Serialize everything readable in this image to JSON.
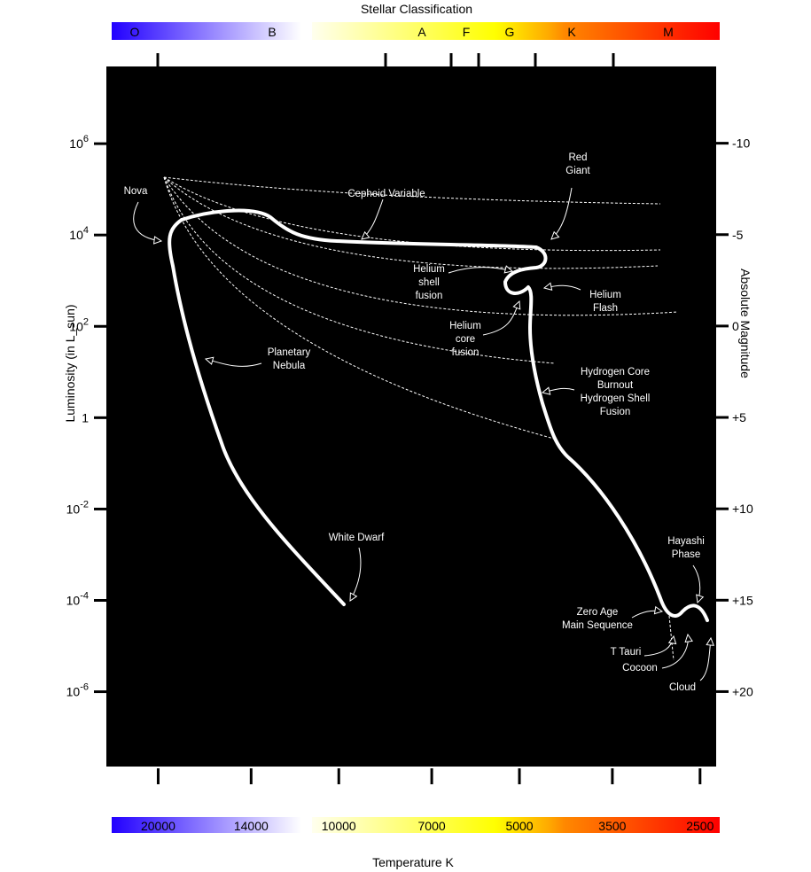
{
  "chart_data": {
    "type": "hr-diagram",
    "title": "Stellar Classification",
    "xlabel": "Temperature K",
    "ylabel": "Luminosity (in L_sun)",
    "y2label": "Absolute Magnitude",
    "spectral_classes": [
      "O",
      "B",
      "A",
      "F",
      "G",
      "K",
      "M"
    ],
    "xlim": [
      24400,
      2350
    ],
    "xscale": "log",
    "xticks": [
      20000,
      14000,
      10000,
      7000,
      5000,
      3500,
      2500
    ],
    "ylim": [
      49000000,
      2.3e-08
    ],
    "yscale": "log",
    "yticks": [
      {
        "value": 1000000,
        "label": "10",
        "exp": "6"
      },
      {
        "value": 10000,
        "label": "10",
        "exp": "4"
      },
      {
        "value": 100,
        "label": "10",
        "exp": "2"
      },
      {
        "value": 1,
        "label": "1"
      },
      {
        "value": 0.01,
        "label": "10",
        "exp": "-2"
      },
      {
        "value": 0.0001,
        "label": "10",
        "exp": "-4"
      },
      {
        "value": 1e-06,
        "label": "10",
        "exp": "-6"
      }
    ],
    "y2lim": [
      -14.2,
      24.1
    ],
    "y2ticks": [
      -10,
      -5,
      0,
      {
        "value": 5,
        "label": "+5"
      },
      {
        "value": 10,
        "label": "+10"
      },
      {
        "value": 15,
        "label": "+15"
      },
      {
        "value": 20,
        "label": "+20"
      }
    ],
    "annotations": [
      [
        "Nova"
      ],
      [
        "Cepheid Variable"
      ],
      [
        "Red",
        "Giant"
      ],
      [
        "Helium",
        "shell",
        "fusion"
      ],
      [
        "Helium",
        "Flash"
      ],
      [
        "Helium",
        "core",
        "fusion"
      ],
      [
        "Planetary",
        "Nebula"
      ],
      [
        "Hydrogen Core",
        "Burnout",
        "Hydrogen Shell",
        "Fusion"
      ],
      [
        "White Dwarf"
      ],
      [
        "Hayashi",
        "Phase"
      ],
      [
        "Zero Age",
        "Main Sequence"
      ],
      [
        "T Tauri"
      ],
      [
        "Cocoon"
      ],
      [
        "Cloud"
      ]
    ]
  }
}
